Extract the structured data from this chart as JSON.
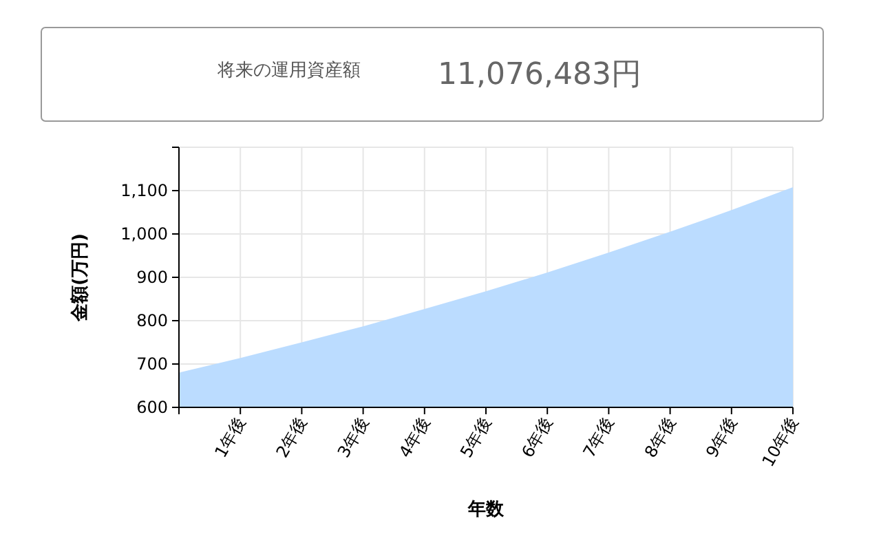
{
  "chart_data": [
    {
      "type": "other",
      "annotations": [
        "将来の運用資産額",
        "11,076,483円"
      ]
    },
    {
      "type": "area",
      "xlabel": "年数",
      "ylabel": "金額(万円)",
      "categories": [
        null,
        "1年後",
        "2年後",
        "3年後",
        "4年後",
        "5年後",
        "6年後",
        "7年後",
        "8年後",
        "9年後",
        "10年後"
      ],
      "series": [
        {
          "color": "#bbdcff",
          "values": [
            680,
            714,
            750,
            787,
            827,
            868,
            911,
            957,
            1005,
            1055,
            1108
          ]
        }
      ],
      "ylim": [
        600,
        1200
      ],
      "yticks": [
        {
          "value": 600,
          "label": "600"
        },
        {
          "value": 700,
          "label": "700"
        },
        {
          "value": 800,
          "label": "800"
        },
        {
          "value": 900,
          "label": "900"
        },
        {
          "value": 1000,
          "label": "1,000"
        },
        {
          "value": 1100,
          "label": "1,100"
        },
        {
          "value": 1200,
          "label": null
        }
      ],
      "grid": true
    }
  ]
}
